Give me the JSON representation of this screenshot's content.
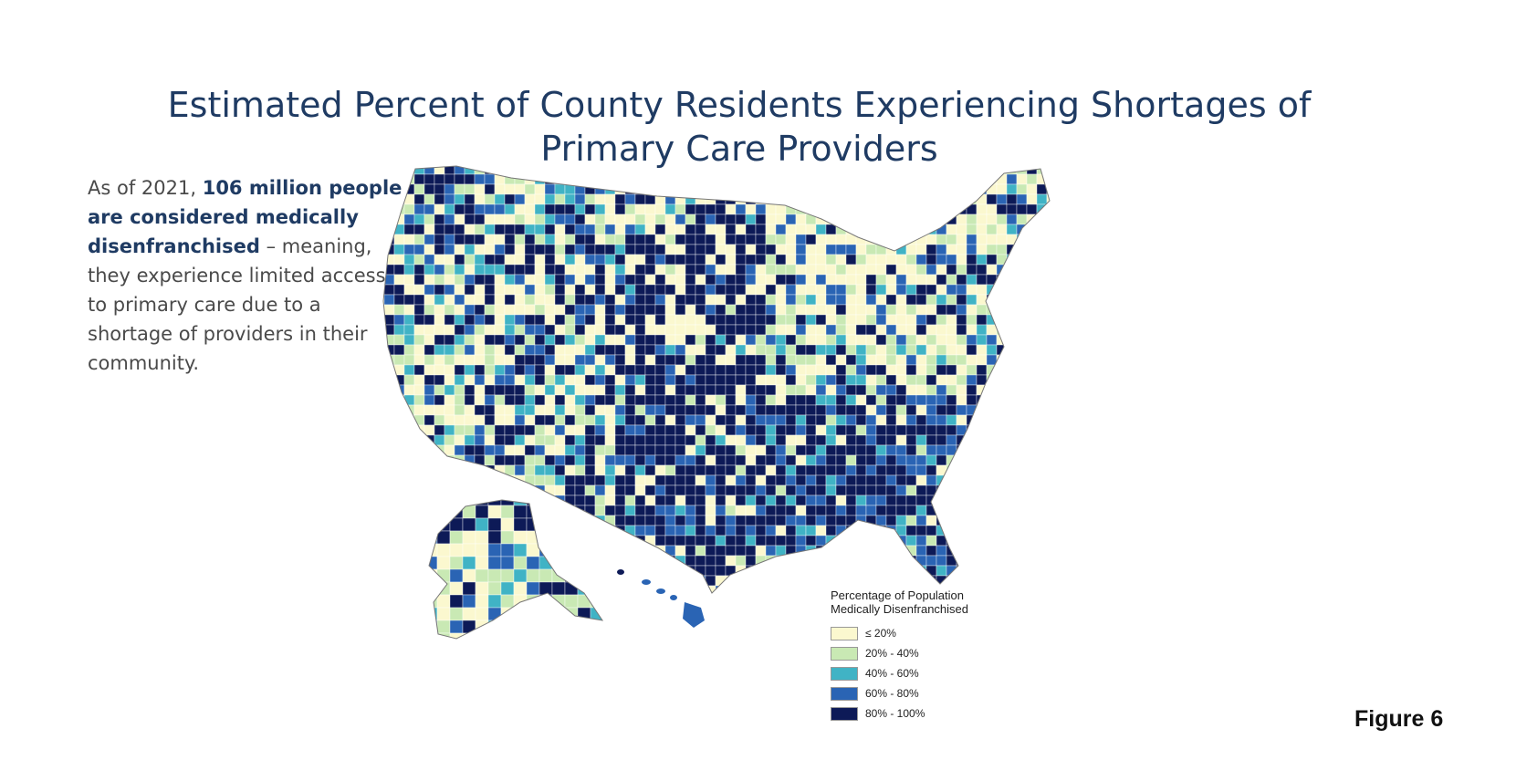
{
  "title": {
    "line1": "Estimated Percent of County Residents Experiencing Shortages of",
    "line2": "Primary Care Providers"
  },
  "intro": {
    "part1": "As of 2021, ",
    "bold": "106 million people are considered medically disenfranchised",
    "part2": " – meaning, they experience limited access to primary care due to a shortage of providers in their community."
  },
  "legend": {
    "title_line1": "Percentage of Population",
    "title_line2": "Medically Disenfranchised",
    "items": [
      {
        "label": "≤ 20%",
        "color": "#fbf8cf"
      },
      {
        "label": "20% - 40%",
        "color": "#c9e9b4"
      },
      {
        "label": "40% - 60%",
        "color": "#40b3c5"
      },
      {
        "label": "60% - 80%",
        "color": "#2a64b4"
      },
      {
        "label": "80% - 100%",
        "color": "#0d1a57"
      }
    ]
  },
  "figure_label": "Figure 6"
}
